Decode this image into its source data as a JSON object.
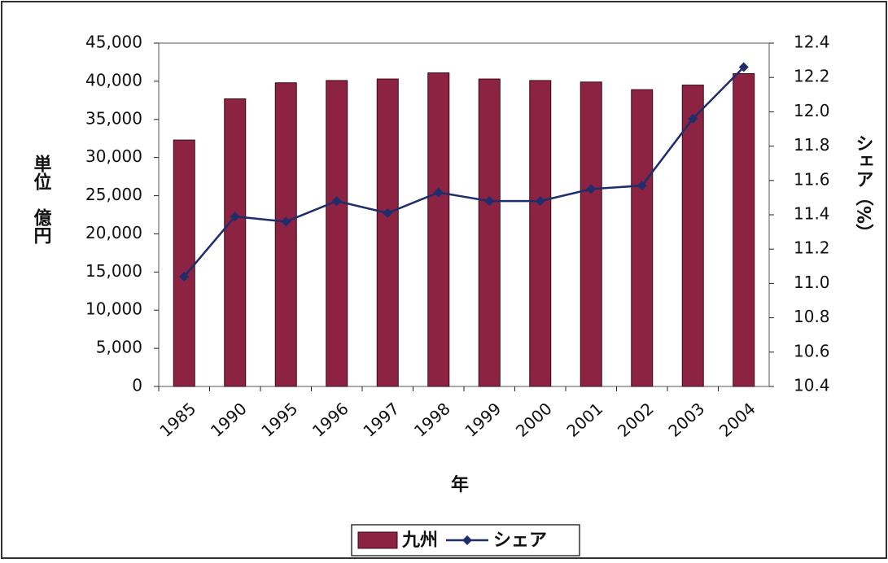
{
  "chart_data": {
    "type": "bar",
    "xlabel": "年",
    "ylabel": "単位　億円",
    "y2label": "シェア（%）",
    "categories": [
      "1985",
      "1990",
      "1995",
      "1996",
      "1997",
      "1998",
      "1999",
      "2000",
      "2001",
      "2002",
      "2003",
      "2004"
    ],
    "series": [
      {
        "name": "九州",
        "type": "bar",
        "color": "#8c2342",
        "values": [
          32300,
          37700,
          39800,
          40100,
          40300,
          41100,
          40300,
          40100,
          39900,
          38900,
          39500,
          41000
        ]
      },
      {
        "name": "シェア",
        "type": "line",
        "axis": "y2",
        "color": "#1f2d6b",
        "values": [
          11.04,
          11.39,
          11.36,
          11.48,
          11.41,
          11.53,
          11.48,
          11.48,
          11.55,
          11.57,
          11.96,
          12.26
        ]
      }
    ],
    "ylim": [
      0,
      45000
    ],
    "yticks": [
      0,
      {
        "value": 5000,
        "label": "5,000"
      },
      {
        "value": 10000,
        "label": "10,000"
      },
      {
        "value": 15000,
        "label": "15,000"
      },
      {
        "value": 20000,
        "label": "20,000"
      },
      {
        "value": 25000,
        "label": "25,000"
      },
      {
        "value": 30000,
        "label": "30,000"
      },
      {
        "value": 35000,
        "label": "35,000"
      },
      {
        "value": 40000,
        "label": "40,000"
      },
      {
        "value": 45000,
        "label": "45,000"
      }
    ],
    "y2lim": [
      10.4,
      12.4
    ],
    "y2ticks": [
      10.4,
      10.6,
      10.8,
      {
        "value": 11.0,
        "label": "11.0"
      },
      11.2,
      11.4,
      11.6,
      11.8,
      {
        "value": 12.0,
        "label": "12.0"
      },
      12.2,
      12.4
    ],
    "grid": false,
    "legend": "bottom"
  }
}
